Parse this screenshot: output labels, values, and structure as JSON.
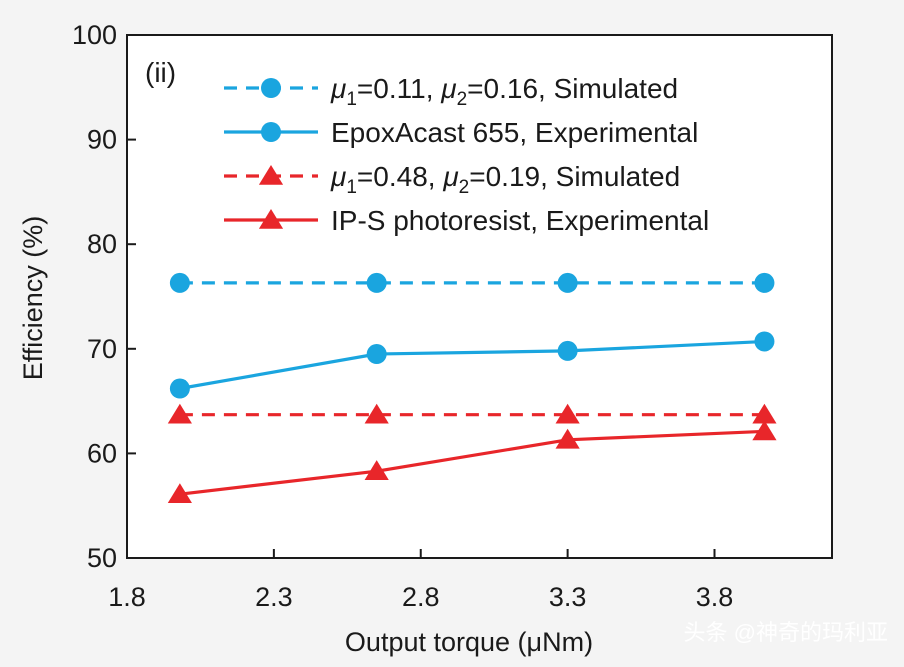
{
  "chart_data": {
    "type": "line",
    "panel_label": "(ii)",
    "xlabel": "Output torque (μNm)",
    "ylabel": "Efficiency (%)",
    "xlim": [
      1.8,
      4.2
    ],
    "ylim": [
      50,
      100
    ],
    "xticks": [
      "1.8",
      "2.3",
      "2.8",
      "3.3",
      "3.8"
    ],
    "xtick_values": [
      1.8,
      2.3,
      2.8,
      3.3,
      3.8
    ],
    "yticks": [
      "50",
      "60",
      "70",
      "80",
      "90",
      "100"
    ],
    "ytick_values": [
      50,
      60,
      70,
      80,
      90,
      100
    ],
    "x": [
      1.98,
      2.65,
      3.3,
      3.97
    ],
    "series": [
      {
        "name_parts": [
          "μ",
          "1",
          "=0.11, ",
          "μ",
          "2",
          "=0.16, Simulated"
        ],
        "color": "#1aa5df",
        "dashed": true,
        "marker": "circle",
        "values": [
          76.3,
          76.3,
          76.3,
          76.3
        ]
      },
      {
        "name_parts": [
          "EpoxAcast 655, Experimental"
        ],
        "color": "#1aa5df",
        "dashed": false,
        "marker": "circle",
        "values": [
          66.2,
          69.5,
          69.8,
          70.7
        ]
      },
      {
        "name_parts": [
          "μ",
          "1",
          "=0.48, ",
          "μ",
          "2",
          "=0.19, Simulated"
        ],
        "color": "#e8262a",
        "dashed": true,
        "marker": "triangle",
        "values": [
          63.7,
          63.7,
          63.7,
          63.7
        ]
      },
      {
        "name_parts": [
          "IP-S photoresist, Experimental"
        ],
        "color": "#e8262a",
        "dashed": false,
        "marker": "triangle",
        "values": [
          56.1,
          58.3,
          61.3,
          62.1
        ]
      }
    ]
  },
  "watermark": "头条 @神奇的玛利亚"
}
